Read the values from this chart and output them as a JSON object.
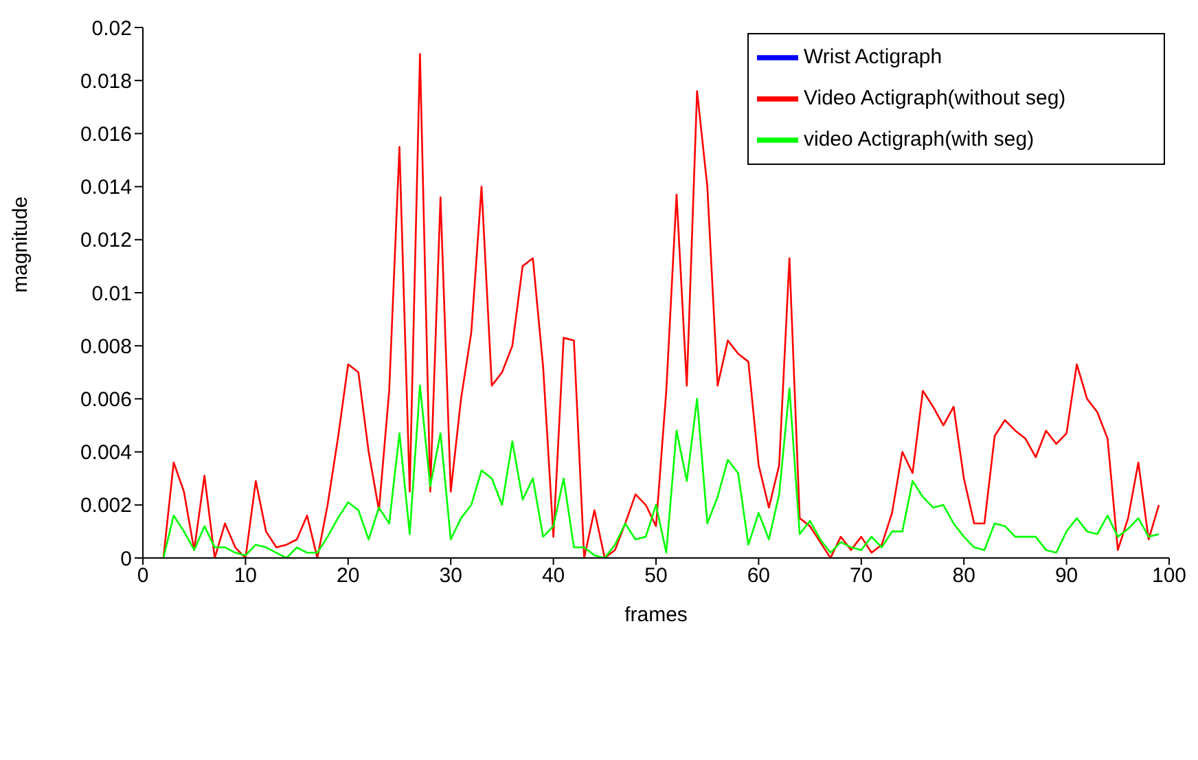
{
  "chart_data": {
    "type": "line",
    "xlabel": "frames",
    "ylabel": "magnitude",
    "x": [
      2,
      3,
      4,
      5,
      6,
      7,
      8,
      9,
      10,
      11,
      12,
      13,
      14,
      15,
      16,
      17,
      18,
      19,
      20,
      21,
      22,
      23,
      24,
      25,
      26,
      27,
      28,
      29,
      30,
      31,
      32,
      33,
      34,
      35,
      36,
      37,
      38,
      39,
      40,
      41,
      42,
      43,
      44,
      45,
      46,
      47,
      48,
      49,
      50,
      51,
      52,
      53,
      54,
      55,
      56,
      57,
      58,
      59,
      60,
      61,
      62,
      63,
      64,
      65,
      66,
      67,
      68,
      69,
      70,
      71,
      72,
      73,
      74,
      75,
      76,
      77,
      78,
      79,
      80,
      81,
      82,
      83,
      84,
      85,
      86,
      87,
      88,
      89,
      90,
      91,
      92,
      93,
      94,
      95,
      96,
      97,
      98,
      99
    ],
    "series": [
      {
        "name": "Wrist Actigraph",
        "color": "#0000ff",
        "values": [
          null,
          null,
          null,
          null,
          null,
          null,
          null,
          null,
          null,
          null,
          null,
          null,
          null,
          null,
          null,
          null,
          null,
          null,
          null,
          null,
          null,
          null,
          null,
          null,
          null,
          null,
          null,
          null,
          null,
          null,
          null,
          null,
          null,
          null,
          null,
          null,
          null,
          null,
          null,
          null,
          null,
          null,
          null,
          null,
          null,
          null,
          null,
          null,
          null,
          null,
          null,
          null,
          null,
          null,
          null,
          null,
          null,
          null,
          null,
          null,
          null,
          null,
          null,
          null,
          null,
          null,
          null,
          null,
          null,
          null,
          null,
          null,
          null,
          null,
          null,
          null,
          null,
          null,
          null,
          null,
          null,
          null,
          null,
          null,
          null,
          null,
          null,
          null,
          null,
          null,
          null,
          null,
          null,
          null,
          null,
          null,
          null,
          null
        ]
      },
      {
        "name": "Video Actigraph(without seg)",
        "color": "#ff0000",
        "values": [
          0,
          0.0036,
          0.0025,
          0.0003,
          0.0031,
          0,
          0.0013,
          0.0004,
          0,
          0.0029,
          0.001,
          0.0004,
          0.0005,
          0.0007,
          0.0016,
          0,
          0.002,
          0.0045,
          0.0073,
          0.007,
          0.004,
          0.0018,
          0.0063,
          0.0155,
          0.0025,
          0.019,
          0.0025,
          0.0136,
          0.0025,
          0.006,
          0.0085,
          0.014,
          0.0065,
          0.007,
          0.008,
          0.011,
          0.0113,
          0.0072,
          0.0008,
          0.0083,
          0.0082,
          0,
          0.0018,
          0,
          0.0003,
          0.0013,
          0.0024,
          0.002,
          0.0012,
          0.0063,
          0.0137,
          0.0065,
          0.0176,
          0.014,
          0.0065,
          0.0082,
          0.0077,
          0.0074,
          0.0035,
          0.0019,
          0.0035,
          0.0113,
          0.0015,
          0.0012,
          0.0006,
          0,
          0.0008,
          0.0003,
          0.0008,
          0.0002,
          0.0005,
          0.0017,
          0.004,
          0.0032,
          0.0063,
          0.0057,
          0.005,
          0.0057,
          0.003,
          0.0013,
          0.0013,
          0.0046,
          0.0052,
          0.0048,
          0.0045,
          0.0038,
          0.0048,
          0.0043,
          0.0047,
          0.0073,
          0.006,
          0.0055,
          0.0045,
          0.0003,
          0.0015,
          0.0036,
          0.0007,
          0.002
        ]
      },
      {
        "name": "video Actigraph(with seg)",
        "color": "#00ff00",
        "values": [
          0,
          0.0016,
          0.001,
          0.0003,
          0.0012,
          0.0004,
          0.0004,
          0.0002,
          0.0001,
          0.0005,
          0.0004,
          0.0002,
          0,
          0.0004,
          0.0002,
          0.0002,
          0.0008,
          0.0015,
          0.0021,
          0.0018,
          0.0007,
          0.0019,
          0.0013,
          0.0047,
          0.0009,
          0.0065,
          0.0027,
          0.0047,
          0.0007,
          0.0015,
          0.002,
          0.0033,
          0.003,
          0.002,
          0.0044,
          0.0022,
          0.003,
          0.0008,
          0.0012,
          0.003,
          0.0004,
          0.0004,
          0.0001,
          0,
          0.0005,
          0.0013,
          0.0007,
          0.0008,
          0.002,
          0.0002,
          0.0048,
          0.0029,
          0.006,
          0.0013,
          0.0023,
          0.0037,
          0.0032,
          0.0005,
          0.0017,
          0.0007,
          0.0024,
          0.0064,
          0.0009,
          0.0014,
          0.0007,
          0.0002,
          0.0006,
          0.0004,
          0.0003,
          0.0008,
          0.0004,
          0.001,
          0.001,
          0.0029,
          0.0023,
          0.0019,
          0.002,
          0.0013,
          0.0008,
          0.0004,
          0.0003,
          0.0013,
          0.0012,
          0.0008,
          0.0008,
          0.0008,
          0.0003,
          0.0002,
          0.001,
          0.0015,
          0.001,
          0.0009,
          0.0016,
          0.0008,
          0.0011,
          0.0015,
          0.0008,
          0.0009
        ]
      }
    ],
    "xlim": [
      0,
      100
    ],
    "xticks": [
      0,
      10,
      20,
      30,
      40,
      50,
      60,
      70,
      80,
      90,
      100
    ],
    "ylim": [
      0,
      0.02
    ],
    "yticks": [
      0,
      0.002,
      0.004,
      0.006,
      0.008,
      0.01,
      0.012,
      0.014,
      0.016,
      0.018,
      0.02
    ],
    "grid": false,
    "legend": "top right",
    "marker": "none",
    "line_style": "solid"
  }
}
